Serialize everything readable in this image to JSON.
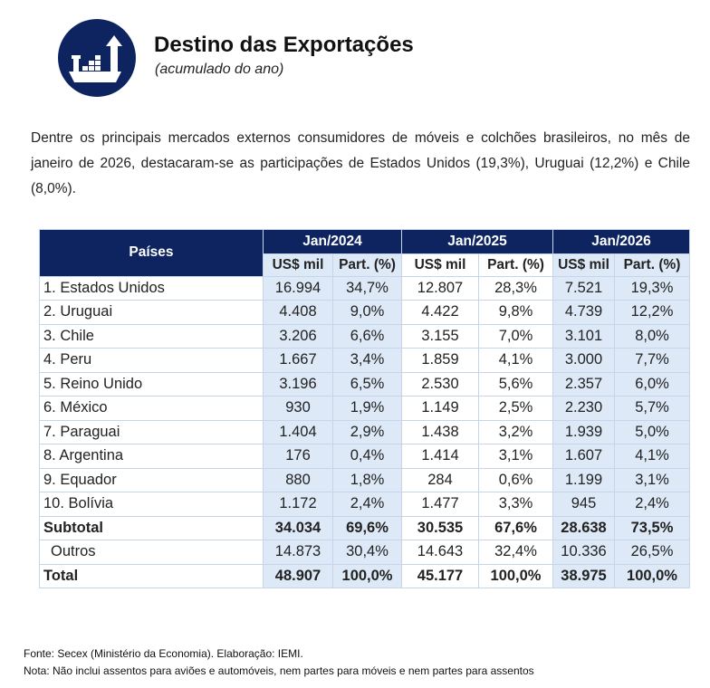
{
  "header": {
    "title": "Destino das Exportações",
    "subtitle": "(acumulado do ano)",
    "icon": "cargo-ship-export-icon",
    "accent": "#0e2461"
  },
  "intro": "Dentre os principais mercados externos consumidores de móveis e colchões brasileiros, no mês de janeiro de 2026, destacaram-se as participações de Estados Unidos (19,3%), Uruguai (12,2%) e Chile (8,0%).",
  "table": {
    "country_header": "Países",
    "periods": [
      "Jan/2024",
      "Jan/2025",
      "Jan/2026"
    ],
    "subheaders": [
      "US$ mil",
      "Part.  (%)",
      "US$ mil",
      "Part. (%)",
      "US$ mil",
      "Part. (%)"
    ],
    "rows": [
      {
        "label": "1. Estados Unidos",
        "values": [
          "16.994",
          "34,7%",
          "12.807",
          "28,3%",
          "7.521",
          "19,3%"
        ]
      },
      {
        "label": "2. Uruguai",
        "values": [
          "4.408",
          "9,0%",
          "4.422",
          "9,8%",
          "4.739",
          "12,2%"
        ]
      },
      {
        "label": "3. Chile",
        "values": [
          "3.206",
          "6,6%",
          "3.155",
          "7,0%",
          "3.101",
          "8,0%"
        ]
      },
      {
        "label": "4. Peru",
        "values": [
          "1.667",
          "3,4%",
          "1.859",
          "4,1%",
          "3.000",
          "7,7%"
        ]
      },
      {
        "label": "5. Reino Unido",
        "values": [
          "3.196",
          "6,5%",
          "2.530",
          "5,6%",
          "2.357",
          "6,0%"
        ]
      },
      {
        "label": "6. México",
        "values": [
          "930",
          "1,9%",
          "1.149",
          "2,5%",
          "2.230",
          "5,7%"
        ]
      },
      {
        "label": "7. Paraguai",
        "values": [
          "1.404",
          "2,9%",
          "1.438",
          "3,2%",
          "1.939",
          "5,0%"
        ]
      },
      {
        "label": "8. Argentina",
        "values": [
          "176",
          "0,4%",
          "1.414",
          "3,1%",
          "1.607",
          "4,1%"
        ]
      },
      {
        "label": "9. Equador",
        "values": [
          "880",
          "1,8%",
          "284",
          "0,6%",
          "1.199",
          "3,1%"
        ]
      },
      {
        "label": "10. Bolívia",
        "values": [
          "1.172",
          "2,4%",
          "1.477",
          "3,3%",
          "945",
          "2,4%"
        ]
      },
      {
        "label": "Subtotal",
        "values": [
          "34.034",
          "69,6%",
          "30.535",
          "67,6%",
          "28.638",
          "73,5%"
        ],
        "bold": true
      },
      {
        "label": "Outros",
        "values": [
          "14.873",
          "30,4%",
          "14.643",
          "32,4%",
          "10.336",
          "26,5%"
        ],
        "indent": true
      },
      {
        "label": "Total",
        "values": [
          "48.907",
          "100,0%",
          "45.177",
          "100,0%",
          "38.975",
          "100,0%"
        ],
        "bold": true
      }
    ]
  },
  "footer": {
    "source": "Fonte: Secex (Ministério da Economia). Elaboração: IEMI.",
    "note": "Nota: Não inclui assentos para aviões e automóveis, nem partes para móveis e nem partes para assentos"
  }
}
